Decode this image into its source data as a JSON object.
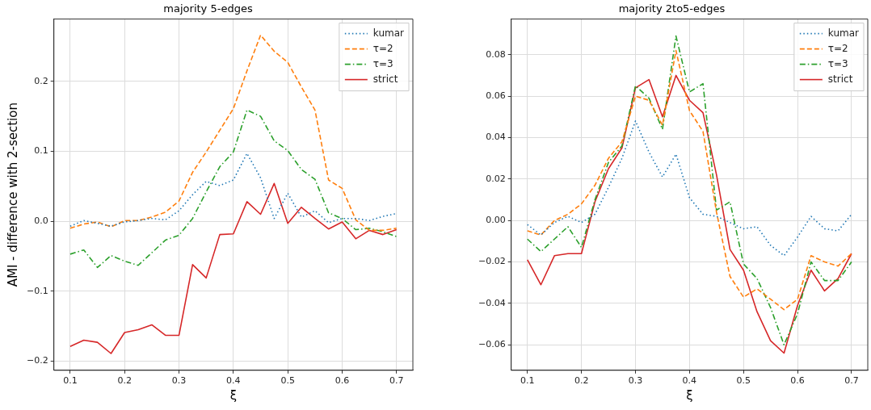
{
  "chart_data": [
    {
      "type": "line",
      "title": "majority 5-edges",
      "xlabel": "ξ",
      "ylabel": "AMI - difference with 2-section",
      "x": [
        0.1,
        0.125,
        0.15,
        0.175,
        0.2,
        0.225,
        0.25,
        0.275,
        0.3,
        0.325,
        0.35,
        0.375,
        0.4,
        0.425,
        0.45,
        0.475,
        0.5,
        0.525,
        0.55,
        0.575,
        0.6,
        0.625,
        0.65,
        0.675,
        0.7
      ],
      "series": [
        {
          "name": "kumar",
          "color": "#1f77b4",
          "line_style": "dotted",
          "values": [
            -0.007,
            0.001,
            -0.003,
            -0.007,
            -0.001,
            0.001,
            0.004,
            0.002,
            0.015,
            0.038,
            0.057,
            0.051,
            0.059,
            0.097,
            0.062,
            0.004,
            0.04,
            0.006,
            0.015,
            -0.002,
            0.004,
            0.004,
            0.001,
            0.007,
            0.011
          ]
        },
        {
          "name": "τ=2",
          "color": "#ff7f0e",
          "line_style": "dashed",
          "values": [
            -0.01,
            -0.004,
            -0.001,
            -0.008,
            0.001,
            0.001,
            0.006,
            0.013,
            0.029,
            0.07,
            0.099,
            0.13,
            0.161,
            0.215,
            0.266,
            0.243,
            0.227,
            0.192,
            0.159,
            0.059,
            0.047,
            0.002,
            -0.013,
            -0.013,
            -0.01
          ]
        },
        {
          "name": "τ=3",
          "color": "#2ca02c",
          "line_style": "dashdot",
          "values": [
            -0.047,
            -0.041,
            -0.066,
            -0.049,
            -0.057,
            -0.063,
            -0.045,
            -0.027,
            -0.02,
            0.004,
            0.042,
            0.078,
            0.099,
            0.159,
            0.15,
            0.115,
            0.101,
            0.074,
            0.06,
            0.012,
            0.004,
            -0.012,
            -0.01,
            -0.015,
            -0.022
          ]
        },
        {
          "name": "strict",
          "color": "#d62728",
          "line_style": "solid",
          "values": [
            -0.179,
            -0.17,
            -0.173,
            -0.189,
            -0.159,
            -0.155,
            -0.148,
            -0.163,
            -0.163,
            -0.062,
            -0.081,
            -0.019,
            -0.018,
            0.028,
            0.01,
            0.054,
            -0.003,
            0.02,
            0.004,
            -0.011,
            -0.001,
            -0.025,
            -0.013,
            -0.019,
            -0.012
          ]
        }
      ],
      "xlim": [
        0.07,
        0.73
      ],
      "xticks": [
        0.1,
        0.2,
        0.3,
        0.4,
        0.5,
        0.6,
        0.7
      ],
      "ylim": [
        -0.213,
        0.289
      ],
      "yticks": [
        {
          "value": -0.2,
          "label": "−0.2"
        },
        {
          "value": -0.1,
          "label": "−0.1"
        },
        {
          "value": 0,
          "label": "0.0"
        },
        {
          "value": 0.1,
          "label": "0.1"
        },
        {
          "value": 0.2,
          "label": "0.2"
        }
      ],
      "grid": true,
      "legend": "top right"
    },
    {
      "type": "line",
      "title": "majority 2to5-edges",
      "xlabel": "ξ",
      "x": [
        0.1,
        0.125,
        0.15,
        0.175,
        0.2,
        0.225,
        0.25,
        0.275,
        0.3,
        0.325,
        0.35,
        0.375,
        0.4,
        0.425,
        0.45,
        0.475,
        0.5,
        0.525,
        0.55,
        0.575,
        0.6,
        0.625,
        0.65,
        0.675,
        0.7
      ],
      "series": [
        {
          "name": "kumar",
          "color": "#1f77b4",
          "line_style": "dotted",
          "values": [
            -0.002,
            -0.007,
            -0.001,
            0.002,
            -0.001,
            0.003,
            0.016,
            0.03,
            0.048,
            0.033,
            0.021,
            0.032,
            0.011,
            0.003,
            0.002,
            -0.001,
            -0.004,
            -0.003,
            -0.012,
            -0.017,
            -0.008,
            0.002,
            -0.004,
            -0.005,
            0.003
          ]
        },
        {
          "name": "τ=2",
          "color": "#ff7f0e",
          "line_style": "dashed",
          "values": [
            -0.005,
            -0.007,
            0.0,
            0.003,
            0.008,
            0.017,
            0.03,
            0.038,
            0.06,
            0.058,
            0.046,
            0.082,
            0.053,
            0.043,
            0.004,
            -0.027,
            -0.037,
            -0.033,
            -0.038,
            -0.043,
            -0.038,
            -0.017,
            -0.02,
            -0.022,
            -0.016
          ]
        },
        {
          "name": "τ=3",
          "color": "#2ca02c",
          "line_style": "dashdot",
          "values": [
            -0.009,
            -0.015,
            -0.009,
            -0.003,
            -0.013,
            0.01,
            0.028,
            0.036,
            0.065,
            0.059,
            0.044,
            0.089,
            0.062,
            0.066,
            0.005,
            0.009,
            -0.021,
            -0.028,
            -0.042,
            -0.06,
            -0.045,
            -0.02,
            -0.029,
            -0.029,
            -0.02
          ]
        },
        {
          "name": "strict",
          "color": "#d62728",
          "line_style": "solid",
          "values": [
            -0.019,
            -0.031,
            -0.017,
            -0.016,
            -0.016,
            0.009,
            0.025,
            0.035,
            0.064,
            0.068,
            0.05,
            0.07,
            0.058,
            0.052,
            0.022,
            -0.014,
            -0.024,
            -0.044,
            -0.058,
            -0.064,
            -0.041,
            -0.024,
            -0.034,
            -0.028,
            -0.016
          ]
        }
      ],
      "xlim": [
        0.07,
        0.73
      ],
      "xticks": [
        0.1,
        0.2,
        0.3,
        0.4,
        0.5,
        0.6,
        0.7
      ],
      "ylim": [
        -0.0723,
        0.0972
      ],
      "yticks": [
        {
          "value": -0.06,
          "label": "−0.06"
        },
        {
          "value": -0.04,
          "label": "−0.04"
        },
        {
          "value": -0.02,
          "label": "−0.02"
        },
        {
          "value": 0,
          "label": "0.00"
        },
        {
          "value": 0.02,
          "label": "0.02"
        },
        {
          "value": 0.04,
          "label": "0.04"
        },
        {
          "value": 0.06,
          "label": "0.06"
        },
        {
          "value": 0.08,
          "label": "0.08"
        }
      ],
      "grid": true,
      "legend": "top right"
    }
  ]
}
